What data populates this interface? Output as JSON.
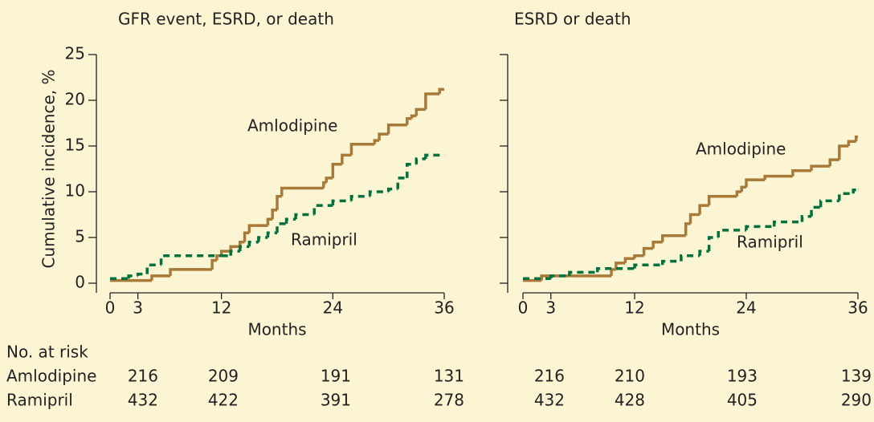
{
  "chart_data": [
    {
      "type": "step",
      "title": "GFR event, ESRD, or death",
      "ylabel": "Cumulative incidence, %",
      "xlabel": "Months",
      "xlim": [
        0,
        36
      ],
      "xticks": [
        0,
        3,
        12,
        24,
        36
      ],
      "ylim": [
        0,
        25
      ],
      "yticks": [
        0,
        5,
        10,
        15,
        20,
        25
      ],
      "ytick_labels": true,
      "series": [
        {
          "name": "Amlodipine",
          "color": "#a87a3a",
          "dash": false,
          "x": [
            0,
            4.5,
            6.5,
            11,
            11.5,
            12,
            13,
            14,
            14.5,
            15,
            17,
            17.5,
            18,
            18.5,
            23,
            23.3,
            24,
            25,
            26,
            28.5,
            29,
            30,
            32,
            32.5,
            33,
            34,
            35.5,
            36
          ],
          "values": [
            0.3,
            0.8,
            1.5,
            2.5,
            3,
            3.5,
            4,
            4.5,
            5.5,
            6.3,
            7,
            8,
            9.5,
            10.4,
            11,
            11.5,
            13,
            14,
            15.2,
            15.6,
            16.3,
            17.3,
            18,
            18.3,
            19,
            20.7,
            21.2,
            21.2
          ]
        },
        {
          "name": "Ramipril",
          "color": "#00703c",
          "dash": true,
          "x": [
            0,
            2,
            3,
            4,
            5.5,
            12,
            13,
            14,
            15,
            16,
            17,
            18,
            19,
            20,
            22,
            24,
            26,
            28,
            30,
            31,
            32,
            33,
            34,
            36
          ],
          "values": [
            0.5,
            0.8,
            1,
            2,
            3,
            3,
            3.5,
            4,
            4.5,
            5,
            5.5,
            6.5,
            7,
            7.5,
            8.5,
            9,
            9.5,
            10,
            10.3,
            11.5,
            13,
            13.6,
            14,
            14
          ]
        }
      ],
      "at_risk": [
        [
          216,
          209,
          191,
          131
        ],
        [
          432,
          422,
          391,
          278
        ]
      ]
    },
    {
      "type": "step",
      "title": "ESRD or death",
      "xlabel": "Months",
      "xlim": [
        0,
        36
      ],
      "xticks": [
        0,
        3,
        12,
        24,
        36
      ],
      "ylim": [
        0,
        25
      ],
      "yticks": [
        0,
        5,
        10,
        15,
        20,
        25
      ],
      "ytick_labels": false,
      "series": [
        {
          "name": "Amlodipine",
          "color": "#a87a3a",
          "dash": false,
          "x": [
            0,
            2,
            9.5,
            10,
            11,
            12,
            13,
            14,
            15,
            17.5,
            18,
            19,
            20,
            23,
            23.5,
            24,
            26,
            29,
            31,
            33,
            34,
            35,
            35.8,
            36
          ],
          "values": [
            0.3,
            0.8,
            1.5,
            2.2,
            2.7,
            3,
            3.8,
            4.5,
            5.2,
            6.5,
            7.5,
            8.5,
            9.5,
            10,
            10.5,
            11.3,
            11.7,
            12.3,
            12.8,
            13.5,
            15,
            15.5,
            16,
            16
          ]
        },
        {
          "name": "Ramipril",
          "color": "#00703c",
          "dash": true,
          "x": [
            0,
            3,
            5,
            8,
            12,
            15,
            17,
            19,
            20,
            21,
            24,
            27,
            30,
            31,
            32,
            34,
            35.5,
            36
          ],
          "values": [
            0.5,
            0.8,
            1.2,
            1.6,
            2,
            2.4,
            3,
            3.5,
            5,
            5.8,
            6.2,
            6.7,
            7.3,
            8.3,
            9,
            9.8,
            10.2,
            10.2
          ]
        }
      ],
      "at_risk": [
        [
          216,
          210,
          193,
          139
        ],
        [
          432,
          428,
          405,
          290
        ]
      ]
    }
  ],
  "risk_table": {
    "title": "No. at risk",
    "row_names": [
      "Amlodipine",
      "Ramipril"
    ]
  }
}
